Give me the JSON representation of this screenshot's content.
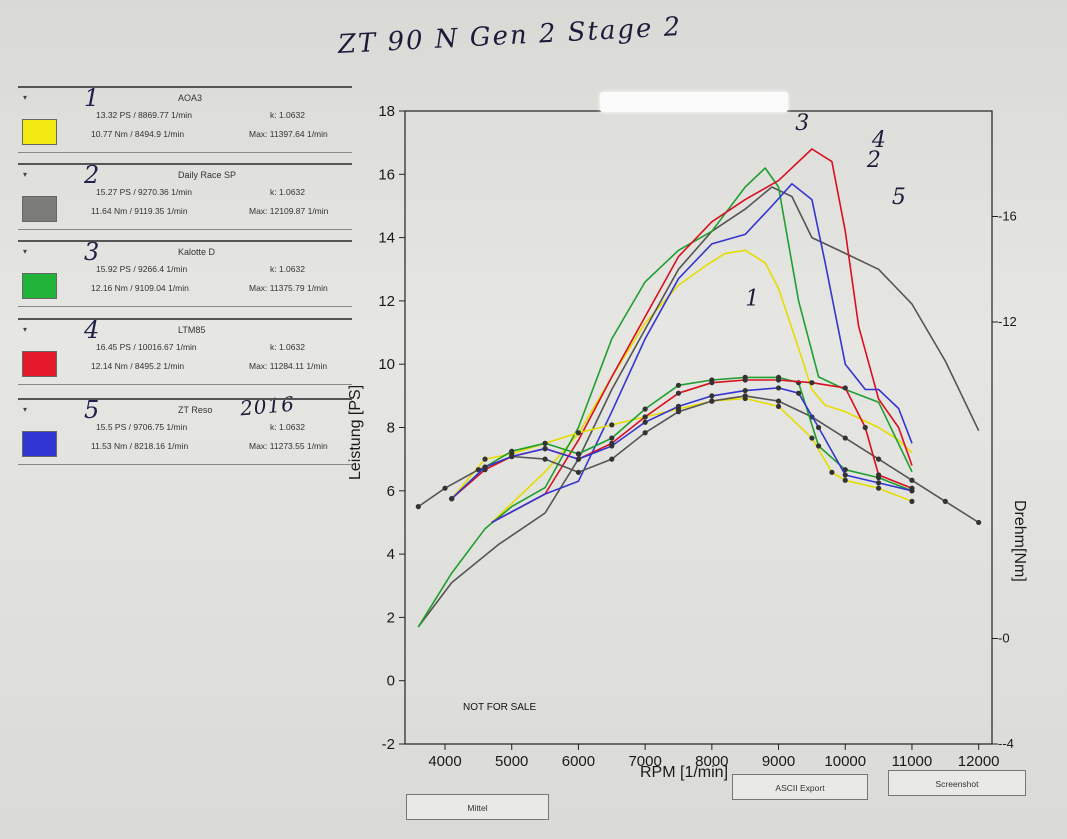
{
  "handwriting": {
    "title": "ZT 90 N Gen 2 Stage 2",
    "year_note": "2016"
  },
  "legend_panels": [
    {
      "num": "1",
      "name": "AOA3",
      "ps": "13.32 PS / 8869.77 1/min",
      "k": "k: 1.0632",
      "nm": "10.77 Nm / 8494.9 1/min",
      "max": "Max: 11397.64 1/min",
      "color": "#f2ea10"
    },
    {
      "num": "2",
      "name": "Daily Race SP",
      "ps": "15.27 PS / 9270.36 1/min",
      "k": "k: 1.0632",
      "nm": "11.64 Nm / 9119.35 1/min",
      "max": "Max: 12109.87 1/min",
      "color": "#7b7b79"
    },
    {
      "num": "3",
      "name": "Kalotte D",
      "ps": "15.92 PS / 9266.4 1/min",
      "k": "k: 1.0632",
      "nm": "12.16 Nm / 9109.04 1/min",
      "max": "Max: 11375.79 1/min",
      "color": "#22b33a"
    },
    {
      "num": "4",
      "name": "LTM85",
      "ps": "16.45 PS / 10016.67 1/min",
      "k": "k: 1.0632",
      "nm": "12.14 Nm / 8495.2 1/min",
      "max": "Max: 11284.11 1/min",
      "color": "#e3192a"
    },
    {
      "num": "5",
      "name": "ZT Reso",
      "ps": "15.5 PS / 9706.75 1/min",
      "k": "k: 1.0632",
      "nm": "11.53 Nm / 8218.16 1/min",
      "max": "Max: 11273.55 1/min",
      "color": "#3034d0"
    }
  ],
  "buttons": {
    "mittel": "Mittel",
    "ascii": "ASCII Export",
    "screenshot": "Screenshot"
  },
  "chart_data": {
    "type": "line",
    "title": "",
    "xlabel": "RPM [1/min]",
    "ylabel": "Leistung [PS]",
    "y2label": "Drehm[Nm]",
    "xlim": [
      3400,
      12200
    ],
    "ylim": [
      -2,
      18
    ],
    "y2lim": [
      -4,
      20
    ],
    "x_ticks": [
      4000,
      5000,
      6000,
      7000,
      8000,
      9000,
      10000,
      11000,
      12000
    ],
    "y_ticks": [
      -2,
      0,
      2,
      4,
      6,
      8,
      10,
      12,
      14,
      16,
      18
    ],
    "y2_ticks": [
      -4,
      0,
      12,
      16
    ],
    "grid": false,
    "annotation": "NOT FOR SALE",
    "series_power": [
      {
        "name": "1",
        "color": "#e6dd00",
        "x": [
          4700,
          5500,
          6000,
          6500,
          7000,
          7500,
          7900,
          8200,
          8500,
          8800,
          9000,
          9300,
          9500,
          9700,
          10000,
          10500,
          10800,
          11000
        ],
        "y": [
          5.0,
          6.6,
          7.8,
          9.6,
          11.3,
          12.5,
          13.1,
          13.5,
          13.6,
          13.2,
          12.4,
          10.5,
          9.2,
          8.7,
          8.5,
          8.0,
          7.6,
          7.2
        ]
      },
      {
        "name": "2",
        "color": "#555555",
        "x": [
          3600,
          4100,
          4800,
          5500,
          6000,
          6500,
          7000,
          7500,
          8000,
          8500,
          8900,
          9200,
          9500,
          10000,
          10500,
          11000,
          11500,
          12000
        ],
        "y": [
          1.7,
          3.1,
          4.3,
          5.3,
          7.0,
          9.2,
          11.1,
          13.0,
          14.2,
          14.9,
          15.6,
          15.3,
          14.0,
          13.5,
          13.0,
          11.9,
          10.1,
          7.9
        ]
      },
      {
        "name": "3",
        "color": "#1f9f2f",
        "x": [
          3600,
          4100,
          4600,
          5000,
          5500,
          6000,
          6500,
          7000,
          7500,
          8000,
          8500,
          8800,
          9000,
          9300,
          9600,
          10000,
          10500,
          11000
        ],
        "y": [
          1.7,
          3.4,
          4.8,
          5.5,
          6.1,
          8.0,
          10.8,
          12.6,
          13.6,
          14.2,
          15.6,
          16.2,
          15.6,
          12.0,
          9.6,
          9.2,
          8.8,
          6.6
        ]
      },
      {
        "name": "4",
        "color": "#d81020",
        "x": [
          4700,
          5500,
          6000,
          6500,
          7000,
          7500,
          8000,
          8500,
          9000,
          9500,
          9800,
          10000,
          10200,
          10500,
          10800,
          11000
        ],
        "y": [
          5.0,
          5.9,
          7.6,
          9.6,
          11.5,
          13.4,
          14.5,
          15.2,
          15.8,
          16.8,
          16.4,
          14.2,
          11.2,
          8.9,
          8.0,
          6.8
        ]
      },
      {
        "name": "5",
        "color": "#3535d0",
        "x": [
          4700,
          5500,
          6000,
          6500,
          7000,
          7500,
          8000,
          8500,
          8900,
          9200,
          9500,
          9700,
          10000,
          10300,
          10500,
          10800,
          11000
        ],
        "y": [
          5.0,
          5.9,
          6.3,
          8.5,
          10.8,
          12.7,
          13.8,
          14.1,
          15.0,
          15.7,
          15.2,
          13.2,
          10.0,
          9.2,
          9.2,
          8.6,
          7.5
        ]
      }
    ],
    "series_torque": [
      {
        "name": "1",
        "color": "#e6dd00",
        "x": [
          4100,
          4600,
          5000,
          5500,
          6000,
          6500,
          7000,
          7500,
          8000,
          8500,
          9000,
          9500,
          9800,
          10000,
          10500,
          11000
        ],
        "y": [
          5.3,
          6.8,
          7.0,
          7.4,
          7.8,
          8.1,
          8.4,
          8.7,
          9.0,
          9.1,
          8.8,
          7.6,
          6.3,
          6.0,
          5.7,
          5.2
        ]
      },
      {
        "name": "2",
        "color": "#555555",
        "x": [
          3600,
          4000,
          4500,
          5000,
          5500,
          6000,
          6500,
          7000,
          7500,
          8000,
          8500,
          9000,
          9500,
          10000,
          10500,
          11000,
          11500,
          12000
        ],
        "y": [
          5.0,
          5.7,
          6.4,
          6.9,
          6.8,
          6.3,
          6.8,
          7.8,
          8.6,
          9.0,
          9.2,
          9.0,
          8.4,
          7.6,
          6.8,
          6.0,
          5.2,
          4.4
        ]
      },
      {
        "name": "3",
        "color": "#1f9f2f",
        "x": [
          4100,
          4600,
          5000,
          5500,
          6000,
          6500,
          7000,
          7500,
          8000,
          8500,
          9000,
          9300,
          9600,
          10000,
          10500,
          11000
        ],
        "y": [
          5.3,
          6.5,
          7.1,
          7.4,
          7.0,
          7.6,
          8.7,
          9.6,
          9.8,
          9.9,
          9.9,
          9.7,
          7.3,
          6.4,
          6.1,
          5.6
        ]
      },
      {
        "name": "4",
        "color": "#d81020",
        "x": [
          4100,
          4600,
          5000,
          5500,
          6000,
          6500,
          7000,
          7500,
          8000,
          8500,
          9000,
          9500,
          10000,
          10300,
          10500,
          11000
        ],
        "y": [
          5.3,
          6.4,
          6.9,
          7.2,
          6.8,
          7.4,
          8.4,
          9.3,
          9.7,
          9.8,
          9.8,
          9.7,
          9.5,
          8.0,
          6.2,
          5.7
        ]
      },
      {
        "name": "5",
        "color": "#3535d0",
        "x": [
          4100,
          4600,
          5000,
          5500,
          6000,
          6500,
          7000,
          7500,
          8000,
          8500,
          9000,
          9300,
          9600,
          10000,
          10500,
          11000
        ],
        "y": [
          5.3,
          6.5,
          6.9,
          7.2,
          6.8,
          7.3,
          8.2,
          8.8,
          9.2,
          9.4,
          9.5,
          9.3,
          8.0,
          6.2,
          5.9,
          5.6
        ]
      }
    ]
  }
}
